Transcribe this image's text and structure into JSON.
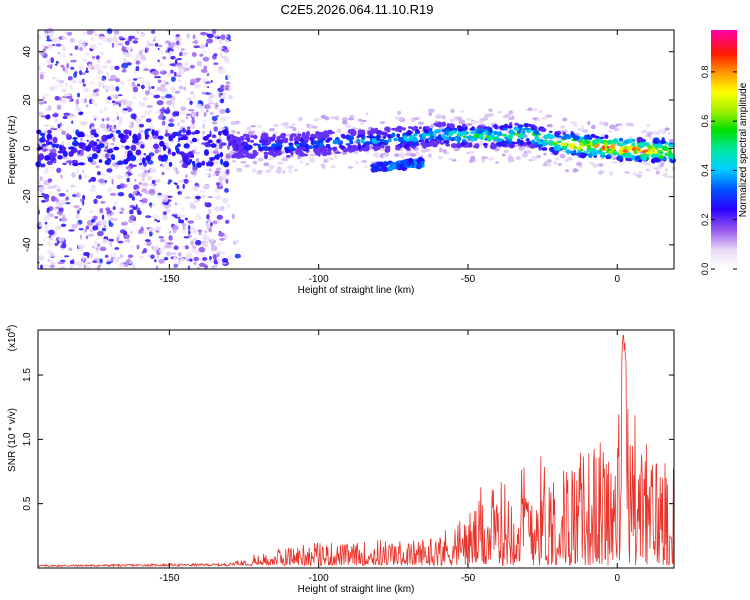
{
  "title": "C2E5.2026.064.11.10.R19",
  "chart_data": [
    {
      "type": "heatmap",
      "xlabel": "Height of straight line (km)",
      "ylabel": "Frequency (Hz)",
      "xlim": [
        -194,
        19
      ],
      "ylim": [
        -50,
        49
      ],
      "xticks": [
        -150,
        -100,
        -50,
        0
      ],
      "xtick_labels": [
        "-150",
        "-100",
        "-50",
        "0"
      ],
      "yticks": [
        -40,
        -20,
        0,
        20,
        40
      ],
      "ytick_labels": [
        "-40",
        "-20",
        "0",
        "20",
        "40"
      ],
      "colorbar": {
        "label": "Normalized spectral amplitude",
        "range": [
          0,
          0.97
        ],
        "ticks": [
          0.0,
          0.2,
          0.4,
          0.6,
          0.8
        ],
        "tick_labels": [
          "0.0",
          "0.2",
          "0.4",
          "0.6",
          "0.8"
        ]
      },
      "signal_track": {
        "x": [
          -130,
          -110,
          -90,
          -70,
          -60,
          -50,
          -40,
          -30,
          -20,
          -10,
          0,
          10,
          19
        ],
        "center_freq_hz": [
          1,
          1,
          3,
          4,
          6,
          5,
          5,
          6,
          2,
          1,
          0,
          -1,
          -1
        ],
        "amplitude": [
          0.3,
          0.35,
          0.4,
          0.45,
          0.5,
          0.55,
          0.6,
          0.6,
          0.75,
          0.85,
          0.9,
          0.9,
          0.85
        ]
      },
      "secondary_track": {
        "x": [
          -82,
          -65
        ],
        "center_freq_hz": [
          -8,
          -6
        ]
      }
    },
    {
      "type": "line",
      "xlabel": "Height of straight line (km)",
      "ylabel": "SNR (10 * v/v)",
      "y_scale_label": "(x10",
      "y_scale_exponent": "4",
      "y_multiplier": 10000,
      "xlim": [
        -194,
        19
      ],
      "ylim": [
        0,
        1.85
      ],
      "xticks": [
        -150,
        -100,
        -50,
        0
      ],
      "xtick_labels": [
        "-150",
        "-100",
        "-50",
        "0"
      ],
      "yticks": [
        0.5,
        1.0,
        1.5
      ],
      "ytick_labels": [
        "0.5",
        "1.0",
        "1.5"
      ],
      "series": [
        {
          "name": "SNR",
          "color": "#e8332a",
          "envelope_x": [
            -194,
            -130,
            -120,
            -110,
            -100,
            -90,
            -80,
            -70,
            -60,
            -50,
            -40,
            -30,
            -25,
            -20,
            -10,
            0,
            2,
            10,
            19
          ],
          "envelope_y": [
            0.02,
            0.03,
            0.1,
            0.18,
            0.22,
            0.2,
            0.25,
            0.22,
            0.3,
            0.5,
            0.75,
            1.0,
            1.05,
            0.9,
            1.1,
            1.25,
            1.85,
            1.1,
            1.1
          ]
        }
      ]
    }
  ]
}
